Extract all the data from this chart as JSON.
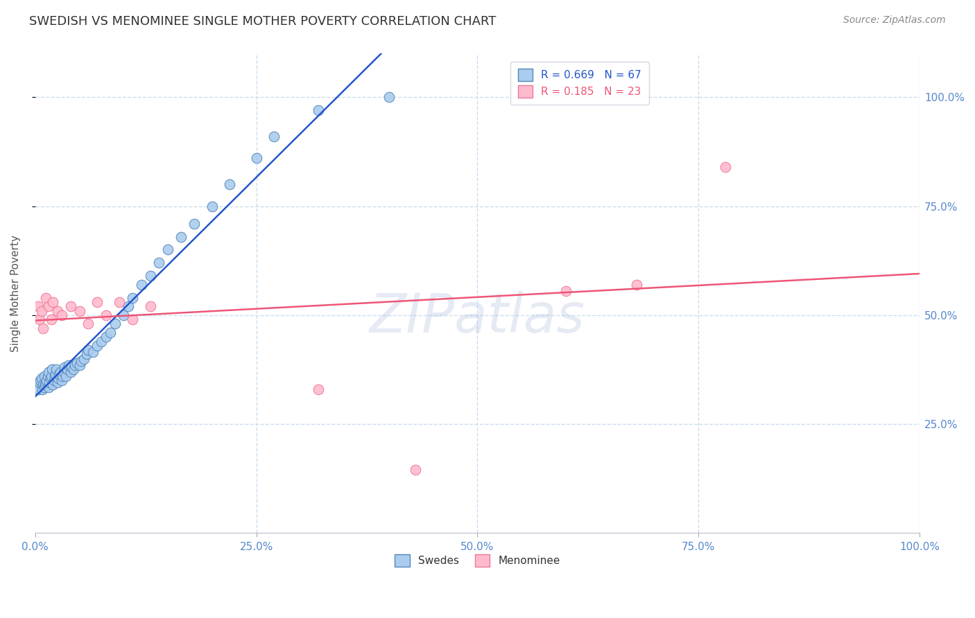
{
  "title": "SWEDISH VS MENOMINEE SINGLE MOTHER POVERTY CORRELATION CHART",
  "source": "Source: ZipAtlas.com",
  "ylabel": "Single Mother Poverty",
  "watermark": "ZIPatlas",
  "legend_blue": "R = 0.669   N = 67",
  "legend_pink": "R = 0.185   N = 23",
  "legend_label_blue": "Swedes",
  "legend_label_pink": "Menominee",
  "blue_scatter_face": "#AACCEE",
  "blue_scatter_edge": "#5588BB",
  "pink_scatter_face": "#FFBBCC",
  "pink_scatter_edge": "#EE7799",
  "blue_line_color": "#2255CC",
  "pink_line_color": "#EE5577",
  "background_color": "#FFFFFF",
  "grid_color": "#CCDDEE",
  "title_color": "#333333",
  "axis_tick_color": "#5588CC",
  "swedes_x": [
    0.002,
    0.003,
    0.004,
    0.005,
    0.006,
    0.007,
    0.008,
    0.009,
    0.01,
    0.01,
    0.011,
    0.012,
    0.013,
    0.014,
    0.015,
    0.015,
    0.016,
    0.017,
    0.018,
    0.019,
    0.02,
    0.021,
    0.022,
    0.023,
    0.024,
    0.025,
    0.026,
    0.027,
    0.028,
    0.03,
    0.031,
    0.032,
    0.033,
    0.035,
    0.036,
    0.038,
    0.04,
    0.041,
    0.043,
    0.045,
    0.047,
    0.05,
    0.052,
    0.055,
    0.058,
    0.06,
    0.065,
    0.07,
    0.075,
    0.08,
    0.085,
    0.09,
    0.1,
    0.105,
    0.11,
    0.12,
    0.13,
    0.14,
    0.15,
    0.165,
    0.18,
    0.2,
    0.22,
    0.25,
    0.27,
    0.32,
    0.4
  ],
  "swedes_y": [
    0.33,
    0.335,
    0.33,
    0.345,
    0.35,
    0.355,
    0.33,
    0.34,
    0.335,
    0.36,
    0.34,
    0.345,
    0.35,
    0.36,
    0.335,
    0.37,
    0.345,
    0.355,
    0.36,
    0.375,
    0.34,
    0.35,
    0.36,
    0.365,
    0.375,
    0.345,
    0.355,
    0.365,
    0.37,
    0.35,
    0.36,
    0.37,
    0.38,
    0.36,
    0.375,
    0.385,
    0.37,
    0.38,
    0.375,
    0.385,
    0.39,
    0.385,
    0.395,
    0.4,
    0.41,
    0.42,
    0.415,
    0.43,
    0.44,
    0.45,
    0.46,
    0.48,
    0.5,
    0.52,
    0.54,
    0.57,
    0.59,
    0.62,
    0.65,
    0.68,
    0.71,
    0.75,
    0.8,
    0.86,
    0.91,
    0.97,
    1.0
  ],
  "menominee_x": [
    0.003,
    0.005,
    0.007,
    0.009,
    0.012,
    0.015,
    0.018,
    0.02,
    0.025,
    0.03,
    0.04,
    0.05,
    0.06,
    0.07,
    0.08,
    0.095,
    0.11,
    0.13,
    0.32,
    0.43,
    0.6,
    0.68,
    0.78
  ],
  "menominee_y": [
    0.52,
    0.49,
    0.51,
    0.47,
    0.54,
    0.52,
    0.49,
    0.53,
    0.51,
    0.5,
    0.52,
    0.51,
    0.48,
    0.53,
    0.5,
    0.53,
    0.49,
    0.52,
    0.33,
    0.145,
    0.555,
    0.57,
    0.84
  ],
  "xlim": [
    0.0,
    1.0
  ],
  "ylim": [
    0.0,
    1.1
  ],
  "blue_line_x0": -0.02,
  "blue_line_x1": 1.02,
  "pink_line_x0": -0.02,
  "pink_line_x1": 1.02
}
